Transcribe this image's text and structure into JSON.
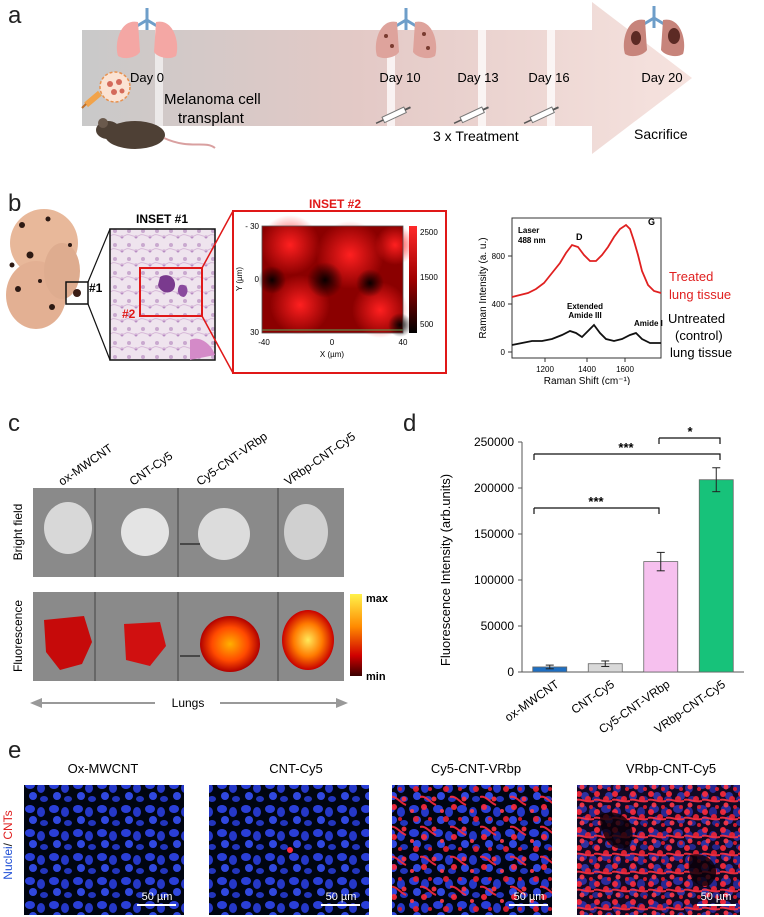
{
  "panel_a": {
    "letter": "a",
    "timepoints": [
      "Day 0",
      "Day 10",
      "Day 13",
      "Day 16",
      "Day 20"
    ],
    "transplant_label_1": "Melanoma cell",
    "transplant_label_2": "transplant",
    "treatment_label": "3 x Treatment",
    "sacrifice_label": "Sacrifice"
  },
  "panel_b": {
    "letter": "b",
    "lung_marker": "#1",
    "inset1_title": "INSET #1",
    "inset1_marker": "#2",
    "inset2_title": "INSET #2",
    "map_xlabel": "X (µm)",
    "map_ylabel": "Y (µm)",
    "map_xticks": [
      "-40",
      "0",
      "40"
    ],
    "map_yticks": [
      "- 30",
      "0",
      "30"
    ],
    "colorbar_ticks": [
      "2500",
      "1500",
      "500"
    ],
    "raman": {
      "ylabel": "Raman Intensity (a. u.)",
      "xlabel": "Raman Shift (cm⁻¹)",
      "laser_1": "Laser",
      "laser_2": "488 nm",
      "peak_d": "D",
      "peak_g": "G",
      "extended_1": "Extended",
      "extended_2": "Amide III",
      "amide_i": "Amide I",
      "xticks": [
        "1200",
        "1400",
        "1600"
      ],
      "yticks": [
        "800",
        "400",
        "0"
      ],
      "treated_1": "Treated",
      "treated_2": "lung tissue",
      "untreated_1": "Untreated",
      "untreated_2": "(control)",
      "untreated_3": "lung tissue",
      "treated_color": "#e02020",
      "untreated_color": "#111111"
    }
  },
  "panel_c": {
    "letter": "c",
    "columns": [
      "ox-MWCNT",
      "CNT-Cy5",
      "Cy5-CNT-VRbp",
      "VRbp-CNT-Cy5"
    ],
    "row_bright": "Bright field",
    "row_fluor": "Fluorescence",
    "scale_max": "max",
    "scale_min": "min",
    "bottom_label": "Lungs"
  },
  "panel_d": {
    "letter": "d",
    "significance": [
      "***",
      "*",
      "***"
    ]
  },
  "chart_data": {
    "type": "bar",
    "categories": [
      "ox-MWCNT",
      "CNT-Cy5",
      "Cy5-CNT-VRbp",
      "VRbp-CNT-Cy5"
    ],
    "values": [
      5500,
      9000,
      120000,
      209000
    ],
    "errors": [
      2000,
      3000,
      10000,
      13000
    ],
    "colors": [
      "#1f6fc2",
      "#d9d9d9",
      "#f6c0ee",
      "#17c27a"
    ],
    "ylabel": "Fluorescence Intensity (arb.units)",
    "ylim": [
      0,
      250000
    ],
    "yticks": [
      "0",
      "50000",
      "100000",
      "150000",
      "200000",
      "250000"
    ],
    "grid": false
  },
  "panel_e": {
    "letter": "e",
    "titles": [
      "Ox-MWCNT",
      "CNT-Cy5",
      "Cy5-CNT-VRbp",
      "VRbp-CNT-Cy5"
    ],
    "scalebar": "50 µm",
    "side_label_nuclei": "Nuclei",
    "side_label_sep": "/ ",
    "side_label_cnts": "CNTs"
  }
}
